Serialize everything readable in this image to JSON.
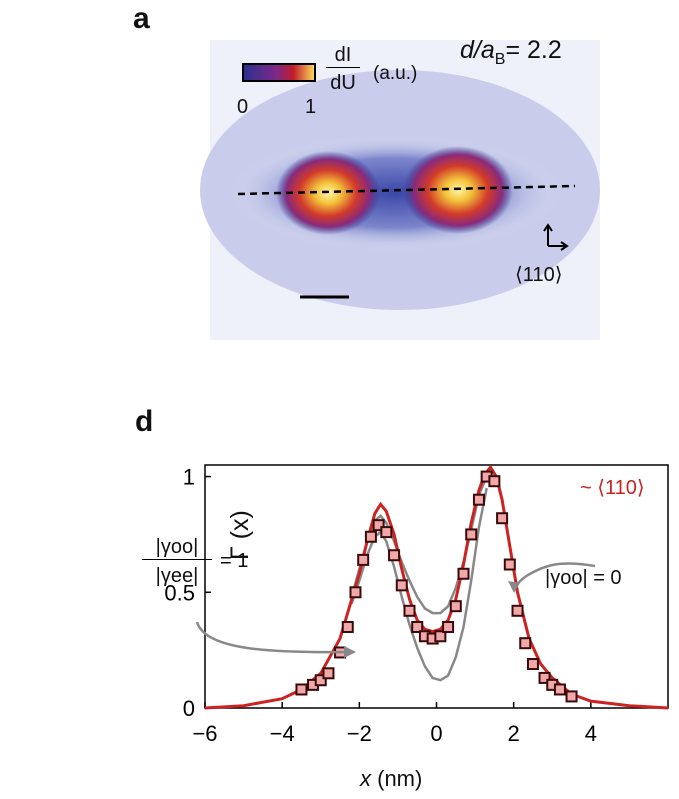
{
  "panel_a": {
    "label": "a",
    "ratio_label": "d/a",
    "ratio_sub": "B",
    "ratio_value": "= 2.2",
    "colorbar": {
      "min": "0",
      "max": "1",
      "num": "dI",
      "den": "dU",
      "unit": "(a.u.)"
    },
    "direction": "⟨110⟩",
    "colors": {
      "low": "#2a2f8f",
      "mid": "#c21b2b",
      "high": "#ffe25a"
    }
  },
  "chart_data": {
    "panel_label": "d",
    "type": "line",
    "xlabel": "x (nm)",
    "ylabel": "Γ (x)",
    "xlim": [
      -6,
      6
    ],
    "ylim": [
      0,
      1.05
    ],
    "xticks": [
      "-6",
      "-4",
      "-2",
      "0",
      "2",
      "4"
    ],
    "yticks": [
      "0",
      "0.5",
      "1"
    ],
    "annotations": {
      "red_curve_label": "~ ⟨110⟩",
      "ratio_top": "|γoo|",
      "ratio_bottom": "|γee|",
      "ratio_eq": "= 1",
      "zero_label": "|γoo| = 0"
    },
    "series": [
      {
        "color": "#cc2222",
        "x": [
          -6,
          -5,
          -4,
          -3.5,
          -3,
          -2.5,
          -2,
          -1.8,
          -1.6,
          -1.45,
          -1.3,
          -1.1,
          -0.9,
          -0.7,
          -0.5,
          -0.3,
          -0.1,
          0.1,
          0.3,
          0.5,
          0.7,
          0.9,
          1.1,
          1.25,
          1.4,
          1.55,
          1.7,
          1.9,
          2.1,
          2.4,
          2.7,
          3,
          3.5,
          4,
          5,
          6
        ],
        "y": [
          0,
          0.01,
          0.04,
          0.08,
          0.15,
          0.3,
          0.58,
          0.72,
          0.84,
          0.88,
          0.85,
          0.75,
          0.6,
          0.47,
          0.38,
          0.34,
          0.33,
          0.34,
          0.38,
          0.47,
          0.62,
          0.8,
          0.94,
          1.01,
          1.04,
          1.0,
          0.9,
          0.7,
          0.5,
          0.3,
          0.19,
          0.13,
          0.06,
          0.03,
          0.01,
          0
        ]
      },
      {
        "color": "#888888",
        "x": [
          -2.2,
          -2,
          -1.8,
          -1.6,
          -1.45,
          -1.3,
          -1.1,
          -0.9,
          -0.7,
          -0.5,
          -0.3,
          -0.1,
          0.1,
          0.3,
          0.5,
          0.7,
          0.9,
          1.1,
          1.3
        ],
        "y": [
          0.45,
          0.55,
          0.66,
          0.74,
          0.76,
          0.72,
          0.61,
          0.48,
          0.36,
          0.26,
          0.18,
          0.13,
          0.12,
          0.14,
          0.22,
          0.35,
          0.55,
          0.78,
          0.95
        ]
      },
      {
        "color": "#888888",
        "x": [
          -2.2,
          -2,
          -1.8,
          -1.6,
          -1.45,
          -1.3,
          -1.1,
          -0.9,
          -0.7,
          -0.5,
          -0.3,
          -0.1,
          0.1,
          0.3,
          0.5,
          0.7,
          0.9,
          1.1,
          1.3
        ],
        "y": [
          0.48,
          0.6,
          0.72,
          0.81,
          0.83,
          0.8,
          0.72,
          0.63,
          0.55,
          0.48,
          0.43,
          0.41,
          0.41,
          0.44,
          0.52,
          0.63,
          0.77,
          0.92,
          1.0
        ]
      },
      {
        "color": "#b01818",
        "markers": true,
        "x": [
          -3.5,
          -3.2,
          -3.0,
          -2.8,
          -2.5,
          -2.3,
          -2.1,
          -1.9,
          -1.7,
          -1.5,
          -1.3,
          -1.1,
          -0.9,
          -0.7,
          -0.5,
          -0.3,
          -0.1,
          0.1,
          0.3,
          0.5,
          0.7,
          0.9,
          1.1,
          1.3,
          1.5,
          1.7,
          1.9,
          2.1,
          2.3,
          2.5,
          2.8,
          3.0,
          3.2,
          3.5
        ],
        "y": [
          0.08,
          0.1,
          0.12,
          0.15,
          0.24,
          0.35,
          0.5,
          0.64,
          0.74,
          0.79,
          0.76,
          0.66,
          0.53,
          0.42,
          0.35,
          0.31,
          0.3,
          0.31,
          0.35,
          0.44,
          0.58,
          0.75,
          0.9,
          1.0,
          0.98,
          0.82,
          0.62,
          0.42,
          0.28,
          0.19,
          0.13,
          0.1,
          0.08,
          0.05
        ]
      }
    ]
  }
}
